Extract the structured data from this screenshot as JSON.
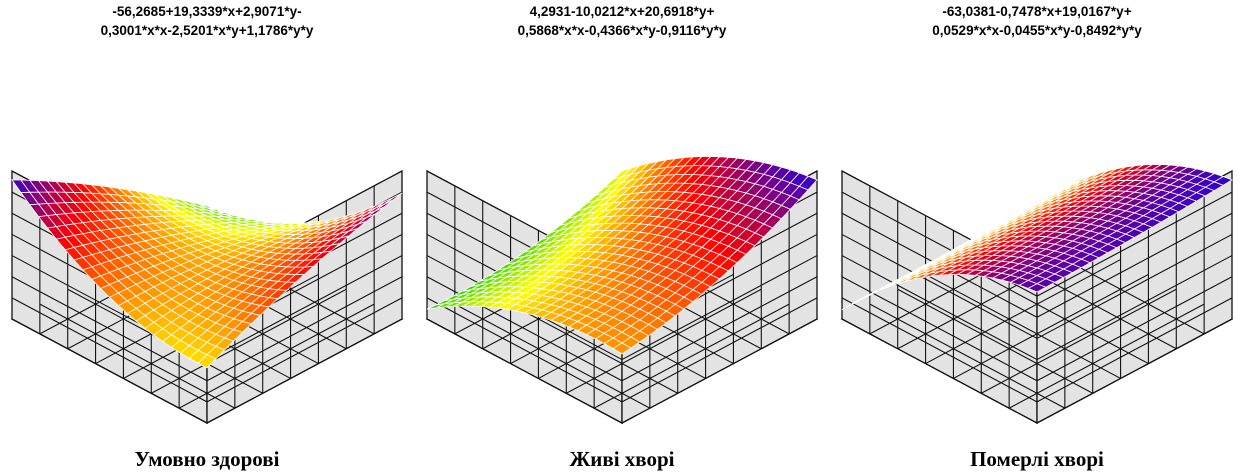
{
  "chart_data": [
    {
      "type": "surface",
      "title": "-56,2685+19,3339*x+2,9071*y-\n0,3001*x*x-2,5201*x*y+1,1786*y*y",
      "title_lines": [
        "-56,2685+19,3339*x+2,9071*y-",
        "0,3001*x*x-2,5201*x*y+1,1786*y*y"
      ],
      "caption": "Умовно здорові",
      "coefficients": {
        "c": -56.2685,
        "x": 19.3339,
        "y": 2.9071,
        "xx": -0.3001,
        "xy": -2.5201,
        "yy": 1.1786
      },
      "colormap": [
        "#0000ff",
        "#ff0000",
        "#ffff00",
        "#00c800"
      ],
      "grid": true
    },
    {
      "type": "surface",
      "title": "4,2931-10,0212*x+20,6918*y+\n0,5868*x*x-0,4366*x*y-0,9116*y*y",
      "title_lines": [
        "4,2931-10,0212*x+20,6918*y+",
        "0,5868*x*x-0,4366*x*y-0,9116*y*y"
      ],
      "caption": "Живі хворі",
      "coefficients": {
        "c": 4.2931,
        "x": -10.0212,
        "y": 20.6918,
        "xx": 0.5868,
        "xy": -0.4366,
        "yy": -0.9116
      },
      "colormap": [
        "#0000ff",
        "#ff0000",
        "#ffff00",
        "#00c800"
      ],
      "grid": true
    },
    {
      "type": "surface",
      "title": "-63,0381-0,7478*x+19,0167*y+\n0,0529*x*x-0,0455*x*y-0,8492*y*y",
      "title_lines": [
        "-63,0381-0,7478*x+19,0167*y+",
        "0,0529*x*x-0,0455*x*y-0,8492*y*y"
      ],
      "caption": "Померлі хворі",
      "coefficients": {
        "c": -63.0381,
        "x": -0.7478,
        "y": 19.0167,
        "xx": 0.0529,
        "xy": -0.0455,
        "yy": -0.8492
      },
      "colormap": [
        "#0000ff",
        "#ff0000",
        "#ffff00",
        "#00c800"
      ],
      "grid": true
    }
  ]
}
